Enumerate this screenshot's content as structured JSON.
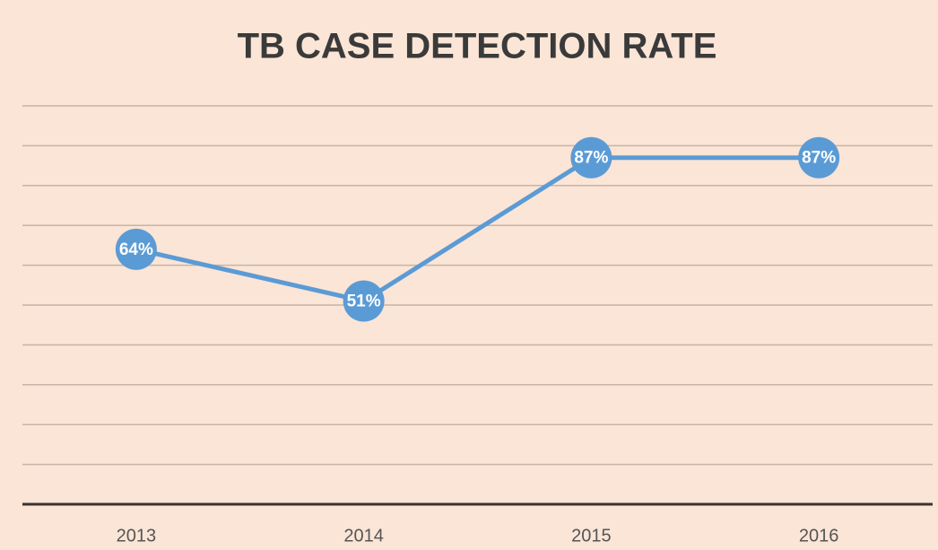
{
  "chart_data": {
    "type": "line",
    "title": "TB CASE DETECTION RATE",
    "categories": [
      "2013",
      "2014",
      "2015",
      "2016"
    ],
    "series": [
      {
        "name": "TB case detection rate",
        "color": "#5b9bd5",
        "values": [
          64,
          51,
          87,
          87
        ],
        "value_labels": [
          "64%",
          "51%",
          "87%",
          "87%"
        ]
      }
    ],
    "ylim": [
      0,
      100
    ],
    "yticks": [
      0,
      10,
      20,
      30,
      40,
      50,
      60,
      70,
      80,
      90,
      100
    ],
    "grid": true
  }
}
